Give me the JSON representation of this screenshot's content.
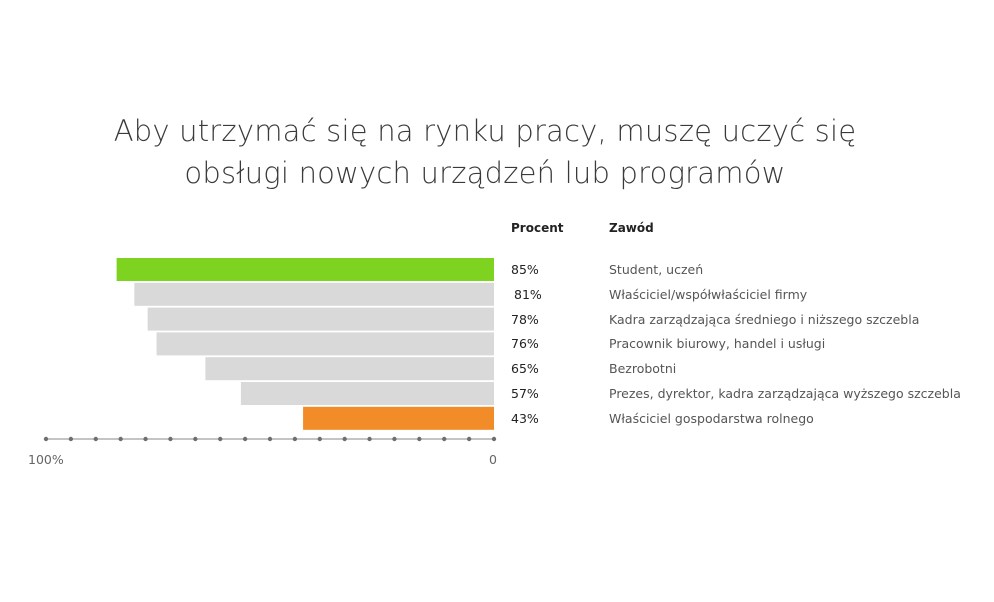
{
  "chart_data": {
    "type": "bar",
    "orientation": "horizontal",
    "title_lines": [
      "Aby utrzymać się na rynku pracy, muszę uczyć się",
      "obsługi nowych urządzeń lub programów"
    ],
    "column_headers": {
      "percent": "Procent",
      "occupation": "Zawód"
    },
    "categories": [
      "Student, uczeń",
      "Właściciel/współwłaściciel firmy",
      "Kadra zarządzająca średniego i niższego szczebla",
      "Pracownik biurowy, handel i usługi",
      "Bezrobotni",
      "Prezes, dyrektor, kadra zarządzająca wyższego szczebla",
      "Właściciel gospodarstwa rolnego"
    ],
    "values": [
      85,
      81,
      78,
      76,
      65,
      57,
      43
    ],
    "value_labels": [
      "85%",
      "81%",
      "78%",
      "76%",
      "65%",
      "57%",
      "43%"
    ],
    "colors": [
      "#7ed321",
      "#d9d9d9",
      "#d9d9d9",
      "#d9d9d9",
      "#d9d9d9",
      "#d9d9d9",
      "#f28c28"
    ],
    "axis": {
      "min_label": "0",
      "max_label": "100%",
      "range": [
        0,
        100
      ],
      "direction": "right-to-left"
    }
  }
}
